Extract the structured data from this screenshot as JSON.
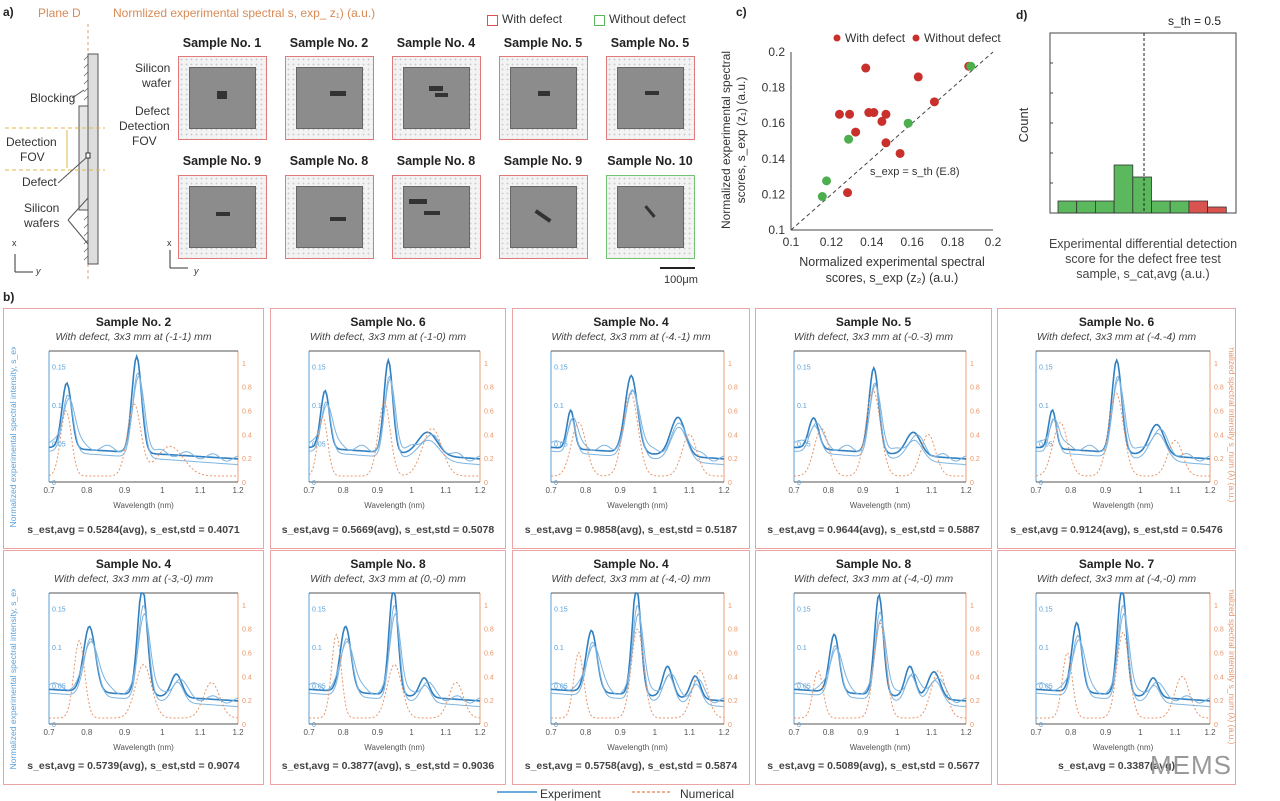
{
  "panel_a": {
    "label": "a)",
    "plane_label": "Plane D",
    "title": "Normlized experimental spectral s, exp_ z₁) (a.u.)",
    "diagram_labels": {
      "blocking": "Blocking",
      "fov1": "Detection",
      "fov2": "FOV",
      "defect": "Defect",
      "wafers1": "Silicon",
      "wafers2": "wafers",
      "x": "x",
      "y": "y"
    },
    "overlay_labels": {
      "wafer1": "Silicon",
      "wafer2": "wafer",
      "defect": "Defect",
      "fov1": "Detection",
      "fov2": "FOV"
    },
    "legend": {
      "with": "With defect",
      "without": "Without defect"
    },
    "scale_bar": "100μm",
    "samples_row1": [
      "Sample No. 1",
      "Sample No. 2",
      "Sample No. 4",
      "Sample No. 5",
      "Sample No. 5"
    ],
    "samples_row2": [
      "Sample No. 9",
      "Sample No. 8",
      "Sample No. 8",
      "Sample No. 9",
      "Sample No. 10"
    ],
    "axes": {
      "x": "x",
      "y": "y"
    }
  },
  "panel_b": {
    "label": "b)",
    "legend": {
      "experiment": "Experiment",
      "numerical": "Numerical"
    },
    "xlabel": "Wavelength (nm)",
    "ylabel_left": "Normalized experimental spectral intensity, s_exp (λ) (a.u.)",
    "ylabel_right": "Normalized spectral intensity s_num (λ) (a.u.)"
  },
  "colors": {
    "defect": "#d9534f",
    "no_defect": "#5cb85c",
    "experiment": "#3a8fd0",
    "numerical": "#e8956a"
  },
  "chart_data": [
    {
      "type": "scatter",
      "id": "c",
      "label": "c)",
      "xlabel": "Normalized experimental spectral scores, s_exp (z₂) (a.u.)",
      "xlabel1": "Normalized experimental spectral",
      "xlabel2": "scores, s_exp (z₂) (a.u.)",
      "ylabel1": "Normalized experimental spectral",
      "ylabel2": "scores, s_exp (z₁) (a.u.)",
      "xlim": [
        0.1,
        0.2
      ],
      "ylim": [
        0.1,
        0.2
      ],
      "xticks": [
        "0.1",
        "0.12",
        "0.14",
        "0.16",
        "0.18",
        "0.2"
      ],
      "yticks": [
        "0.1",
        "0.12",
        "0.14",
        "0.16",
        "0.18",
        "0.2"
      ],
      "legend": [
        "With defect",
        "Without defect"
      ],
      "legend_position": "top",
      "reference_line_label": "s_exp = s_th (E.8)",
      "series": [
        {
          "name": "With defect",
          "points": [
            [
              0.137,
              0.191
            ],
            [
              0.163,
              0.186
            ],
            [
              0.188,
              0.192
            ],
            [
              0.124,
              0.165
            ],
            [
              0.129,
              0.165
            ],
            [
              0.1385,
              0.166
            ],
            [
              0.141,
              0.166
            ],
            [
              0.145,
              0.161
            ],
            [
              0.147,
              0.165
            ],
            [
              0.132,
              0.155
            ],
            [
              0.147,
              0.149
            ],
            [
              0.154,
              0.143
            ],
            [
              0.171,
              0.172
            ],
            [
              0.128,
              0.121
            ]
          ]
        },
        {
          "name": "Without defect",
          "points": [
            [
              0.1285,
              0.151
            ],
            [
              0.158,
              0.16
            ],
            [
              0.1176,
              0.1276
            ],
            [
              0.1155,
              0.1188
            ],
            [
              0.189,
              0.192
            ]
          ]
        }
      ]
    },
    {
      "type": "bar",
      "id": "d",
      "label": "d)",
      "title": "s_th = 0.5",
      "ylabel": "Count",
      "xlabel1": "Experimental differential detection",
      "xlabel2": "score for the defect free test",
      "xlabel3": "sample, s_cat,avg (a.u.)",
      "ylim": [
        0,
        30
      ],
      "values": [
        2,
        2,
        2,
        8,
        6,
        2,
        2,
        2,
        1
      ],
      "bar_classes": [
        "below",
        "below",
        "below",
        "below",
        "below",
        "below",
        "below",
        "above",
        "above"
      ],
      "threshold_bin": 4.6
    },
    {
      "type": "line",
      "id": "b",
      "xlim": [
        0.7,
        1.2
      ],
      "xticks": [
        "0.7",
        "0.8",
        "0.9",
        "1",
        "1.1",
        "1.2"
      ],
      "ylim_left": [
        0,
        0.17
      ],
      "yticks_left": [
        "0",
        "0.05",
        "0.1",
        "0.15"
      ],
      "ylim_right": [
        0,
        1.1
      ],
      "yticks_right": [
        "0",
        "0.2",
        "0.4",
        "0.6",
        "0.8",
        "1"
      ],
      "panels": [
        {
          "title": "Sample No. 2",
          "subtitle": "With defect, 3x3 mm at (-1-1) mm",
          "score": "s_est,avg = 0.5284(avg), s_est,std = 0.4071",
          "exp_peaks": [
            [
              0.75,
              0.085,
              0.018
            ],
            [
              0.935,
              0.125,
              0.018
            ]
          ],
          "num_peaks": [
            [
              0.745,
              0.55,
              0.02
            ],
            [
              0.925,
              0.6,
              0.025
            ],
            [
              1.02,
              0.25,
              0.05
            ]
          ]
        },
        {
          "title": "Sample No. 6",
          "subtitle": "With defect, 3x3 mm at (-1-0) mm",
          "score": "s_est,avg = 0.5669(avg), s_est,std = 0.5078",
          "exp_peaks": [
            [
              0.75,
              0.075,
              0.018
            ],
            [
              0.935,
              0.12,
              0.018
            ],
            [
              1.05,
              0.03,
              0.04
            ]
          ],
          "num_peaks": [
            [
              0.74,
              0.5,
              0.02
            ],
            [
              0.92,
              0.62,
              0.025
            ],
            [
              1.06,
              0.4,
              0.04
            ]
          ]
        },
        {
          "title": "Sample No. 4",
          "subtitle": "With defect, 3x3 mm at (-4.-1) mm",
          "score": "s_est,avg = 0.9858(avg), s_est,std = 0.5187",
          "exp_peaks": [
            [
              0.76,
              0.05,
              0.015
            ],
            [
              0.935,
              0.1,
              0.025
            ],
            [
              1.07,
              0.05,
              0.03
            ]
          ],
          "num_peaks": [
            [
              0.78,
              0.45,
              0.03
            ],
            [
              0.93,
              0.7,
              0.03
            ],
            [
              1.1,
              0.35,
              0.03
            ]
          ]
        },
        {
          "title": "Sample No. 5",
          "subtitle": "With defect, 3x3 mm at (-0.-3) mm",
          "score": "s_est,avg = 0.9644(avg), s_est,std = 0.5887",
          "exp_peaks": [
            [
              0.76,
              0.04,
              0.02
            ],
            [
              0.935,
              0.11,
              0.02
            ],
            [
              1.05,
              0.03,
              0.03
            ]
          ],
          "num_peaks": [
            [
              0.78,
              0.4,
              0.03
            ],
            [
              0.93,
              0.72,
              0.03
            ],
            [
              1.09,
              0.35,
              0.03
            ]
          ]
        },
        {
          "title": "Sample No. 6",
          "subtitle": "With defect, 3x3 mm at (-4.-4) mm",
          "score": "s_est,avg = 0.9124(avg), s_est,std = 0.5476",
          "exp_peaks": [
            [
              0.75,
              0.05,
              0.015
            ],
            [
              0.935,
              0.12,
              0.02
            ],
            [
              1.05,
              0.04,
              0.03
            ]
          ],
          "num_peaks": [
            [
              0.77,
              0.45,
              0.03
            ],
            [
              0.93,
              0.7,
              0.03
            ],
            [
              1.1,
              0.3,
              0.03
            ]
          ]
        },
        {
          "title": "Sample No. 4",
          "subtitle": "With defect, 3x3 mm at (-3,-0) mm",
          "score": "s_est,avg = 0.5739(avg), s_est,std = 0.9074",
          "exp_peaks": [
            [
              0.81,
              0.085,
              0.022
            ],
            [
              0.95,
              0.14,
              0.018
            ],
            [
              1.04,
              0.03,
              0.02
            ]
          ],
          "num_peaks": [
            [
              0.78,
              0.65,
              0.02
            ],
            [
              0.95,
              0.45,
              0.03
            ],
            [
              1.13,
              0.3,
              0.03
            ]
          ]
        },
        {
          "title": "Sample No. 8",
          "subtitle": "With defect, 3x3 mm at (0,-0) mm",
          "score": "s_est,avg = 0.3877(avg), s_est,std = 0.9036",
          "exp_peaks": [
            [
              0.81,
              0.085,
              0.022
            ],
            [
              0.95,
              0.14,
              0.018
            ],
            [
              1.04,
              0.025,
              0.02
            ]
          ],
          "num_peaks": [
            [
              0.78,
              0.7,
              0.02
            ],
            [
              0.95,
              0.45,
              0.03
            ],
            [
              1.13,
              0.3,
              0.03
            ]
          ]
        },
        {
          "title": "Sample No. 4",
          "subtitle": "With defect, 3x3 mm at (-4,-0) mm",
          "score": "s_est,avg = 0.5758(avg), s_est,std = 0.5874",
          "exp_peaks": [
            [
              0.82,
              0.08,
              0.022
            ],
            [
              0.95,
              0.14,
              0.018
            ],
            [
              1.04,
              0.04,
              0.02
            ],
            [
              1.12,
              0.03,
              0.02
            ]
          ],
          "num_peaks": [
            [
              0.78,
              0.55,
              0.02
            ],
            [
              0.95,
              0.75,
              0.025
            ],
            [
              1.13,
              0.4,
              0.03
            ]
          ]
        },
        {
          "title": "Sample No. 8",
          "subtitle": "With defect, 3x3 mm at (-4,-0) mm",
          "score": "s_est,avg = 0.5089(avg), s_est,std = 0.5677",
          "exp_peaks": [
            [
              0.82,
              0.075,
              0.02
            ],
            [
              0.95,
              0.13,
              0.018
            ],
            [
              1.04,
              0.04,
              0.02
            ],
            [
              1.11,
              0.035,
              0.025
            ]
          ],
          "num_peaks": [
            [
              0.77,
              0.4,
              0.02
            ],
            [
              0.95,
              0.8,
              0.025
            ],
            [
              1.12,
              0.4,
              0.03
            ]
          ]
        },
        {
          "title": "Sample No. 7",
          "subtitle": "With defect, 3x3 mm at (-4,-0) mm",
          "score": "s_est,avg = 0.3387(avg)",
          "exp_peaks": [
            [
              0.82,
              0.09,
              0.02
            ],
            [
              0.95,
              0.14,
              0.018
            ],
            [
              1.04,
              0.025,
              0.02
            ]
          ],
          "num_peaks": [
            [
              0.79,
              0.55,
              0.02
            ],
            [
              0.95,
              0.72,
              0.025
            ],
            [
              1.12,
              0.35,
              0.03
            ]
          ]
        }
      ]
    }
  ],
  "watermark": "MEMS"
}
